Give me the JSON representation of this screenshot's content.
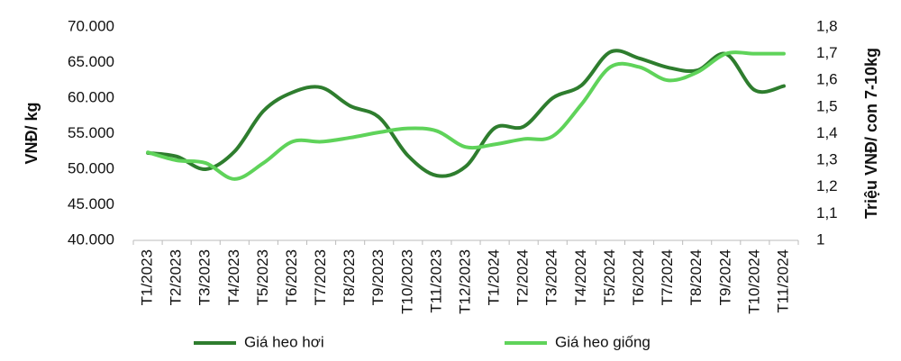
{
  "chart_data": {
    "type": "line",
    "y_label": "VNĐ/ kg",
    "y2_label": "Triệu VNĐ/ con 7-10kg",
    "categories": [
      "T1/2023",
      "T2/2023",
      "T3/2023",
      "T4/2023",
      "T5/2023",
      "T6/2023",
      "T7/2023",
      "T8/2023",
      "T9/2023",
      "T10/2023",
      "T11/2023",
      "T12/2023",
      "T1/2024",
      "T2/2024",
      "T3/2024",
      "T4/2024",
      "T5/2024",
      "T6/2024",
      "T7/2024",
      "T8/2024",
      "T9/2024",
      "T10/2024",
      "T11/2024"
    ],
    "series": [
      {
        "name": "Giá heo hơi",
        "color": "#2e7d2e",
        "axis": "y",
        "values": [
          52300,
          51800,
          50000,
          52500,
          58200,
          60800,
          61500,
          58900,
          57300,
          51900,
          49100,
          50400,
          55800,
          56000,
          60000,
          61800,
          66500,
          65600,
          64300,
          63900,
          66200,
          61100,
          61700
        ]
      },
      {
        "name": "Giá heo giống",
        "color": "#5fd35a",
        "axis": "y2",
        "values": [
          1.33,
          1.3,
          1.29,
          1.23,
          1.29,
          1.37,
          1.37,
          1.385,
          1.405,
          1.42,
          1.41,
          1.35,
          1.36,
          1.38,
          1.39,
          1.51,
          1.65,
          1.65,
          1.6,
          1.63,
          1.7,
          1.7,
          1.7
        ]
      }
    ],
    "ylim": [
      40000,
      70000
    ],
    "yticks": [
      {
        "value": 40000,
        "label": "40.000"
      },
      {
        "value": 45000,
        "label": "45.000"
      },
      {
        "value": 50000,
        "label": "50.000"
      },
      {
        "value": 55000,
        "label": "55.000"
      },
      {
        "value": 60000,
        "label": "60.000"
      },
      {
        "value": 65000,
        "label": "65.000"
      },
      {
        "value": 70000,
        "label": "70.000"
      }
    ],
    "y2lim": [
      1,
      1.8
    ],
    "y2ticks": [
      1,
      {
        "value": 1.1,
        "label": "1,1"
      },
      {
        "value": 1.2,
        "label": "1,2"
      },
      {
        "value": 1.3,
        "label": "1,3"
      },
      {
        "value": 1.4,
        "label": "1,4"
      },
      {
        "value": 1.5,
        "label": "1,5"
      },
      {
        "value": 1.6,
        "label": "1,6"
      },
      {
        "value": 1.7,
        "label": "1,7"
      },
      {
        "value": 1.8,
        "label": "1,8"
      }
    ],
    "legend": "bottom"
  }
}
